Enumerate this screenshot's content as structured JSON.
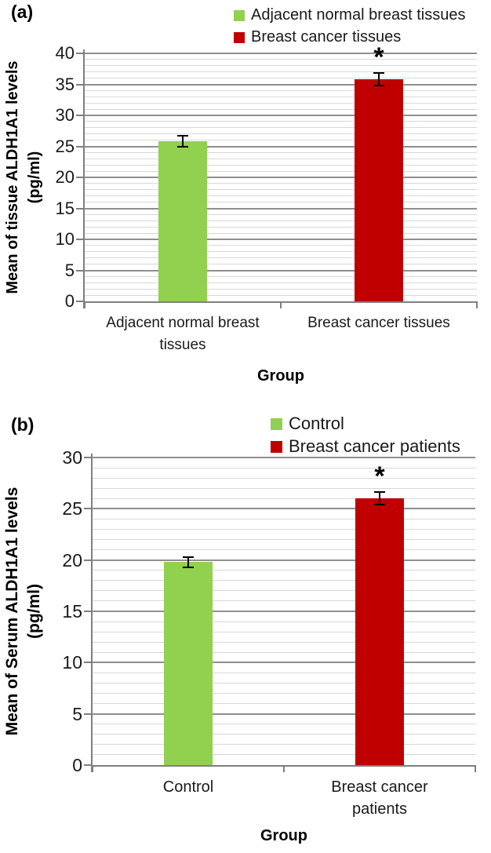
{
  "colors": {
    "green": "#92D050",
    "red": "#C00000",
    "grid_minor": "#D8D8D8",
    "grid_major": "#8F8F8F",
    "axis": "#7F7F7F",
    "error": "#000000",
    "text": "#1A1A1A"
  },
  "chart_data": [
    {
      "type": "bar",
      "panel_label": "(a)",
      "title": "",
      "xlabel": "Group",
      "ylabel": "Mean of tissue ALDH1A1 levels (pg/ml)",
      "ylabel_lines": [
        "Mean of tissue ALDH1A1 levels",
        "(pg/ml)"
      ],
      "categories": [
        "Adjacent normal breast tissues",
        "Breast cancer tissues"
      ],
      "values": [
        25.8,
        35.8
      ],
      "errors": [
        0.9,
        1.0
      ],
      "significance": [
        "",
        "*"
      ],
      "series_colors": [
        "green",
        "red"
      ],
      "legend": [
        {
          "label": "Adjacent normal breast tissues",
          "color": "green"
        },
        {
          "label": "Breast cancer tissues",
          "color": "red"
        }
      ],
      "legend_position": "top-right",
      "ylim": [
        0,
        40
      ],
      "ytick_step": 5,
      "minor_unit": 1,
      "yticks": [
        0,
        5,
        10,
        15,
        20,
        25,
        30,
        35,
        40
      ],
      "grid": "horizontal minor+major"
    },
    {
      "type": "bar",
      "panel_label": "(b)",
      "title": "",
      "xlabel": "Group",
      "ylabel": "Mean of Serum ALDH1A1 levels (pg/ml)",
      "ylabel_lines": [
        "Mean of Serum ALDH1A1 levels",
        "(pg/ml)"
      ],
      "categories": [
        "Control",
        "Breast cancer patients"
      ],
      "values": [
        19.8,
        26.0
      ],
      "errors": [
        0.5,
        0.6
      ],
      "significance": [
        "",
        "*"
      ],
      "series_colors": [
        "green",
        "red"
      ],
      "legend": [
        {
          "label": "Control",
          "color": "green"
        },
        {
          "label": "Breast cancer patients",
          "color": "red"
        }
      ],
      "legend_position": "top-right",
      "ylim": [
        0,
        30
      ],
      "ytick_step": 5,
      "minor_unit": 1,
      "yticks": [
        0,
        5,
        10,
        15,
        20,
        25,
        30
      ],
      "grid": "horizontal minor+major"
    }
  ]
}
